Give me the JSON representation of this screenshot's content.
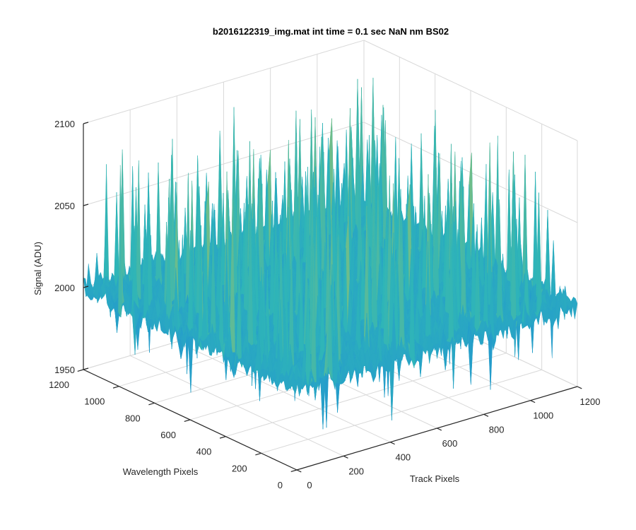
{
  "chart_data": {
    "type": "surface",
    "title": "b2016122319_img.mat int time = 0.1 sec  NaN nm BS02",
    "xlabel": "Track Pixels",
    "ylabel": "Wavelength Pixels",
    "zlabel": "Signal (ADU)",
    "xlim": [
      0,
      1200
    ],
    "ylim": [
      0,
      1200
    ],
    "zlim": [
      1950,
      2100
    ],
    "x_ticks": [
      "0",
      "200",
      "400",
      "600",
      "800",
      "1000",
      "1200"
    ],
    "y_ticks": [
      "0",
      "200",
      "400",
      "600",
      "800",
      "1000",
      "1200"
    ],
    "z_ticks": [
      "1950",
      "2000",
      "2050",
      "2100"
    ],
    "grid": true,
    "colormap": "parula",
    "surface": {
      "description_values": "noisy dark-frame surface",
      "mean": 2000,
      "typical_min": 1975,
      "typical_max": 2060,
      "peak_max": 2095,
      "peak_min": 1960
    },
    "colors": {
      "axis": "#262626",
      "grid": "#d9d9d9",
      "surface_low": "#1f8fd6",
      "surface_mid": "#2fb5b8",
      "surface_high": "#c9c94a"
    }
  }
}
